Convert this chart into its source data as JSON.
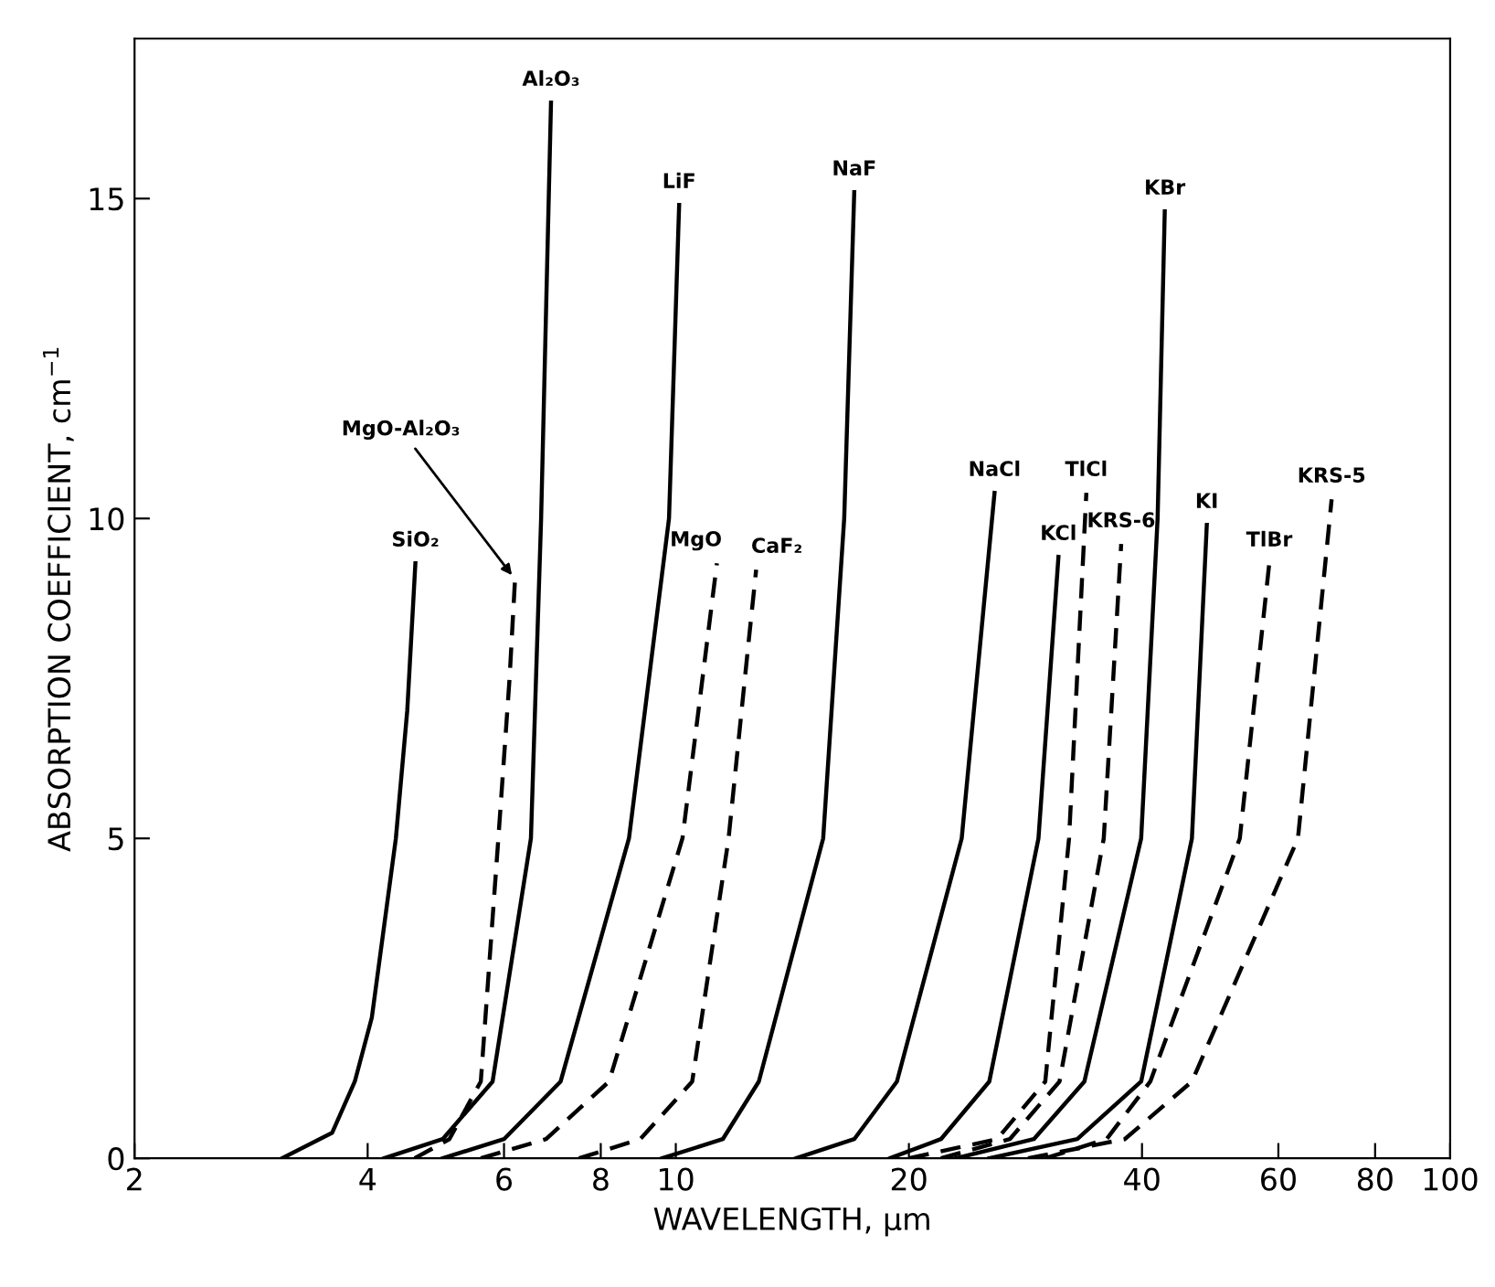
{
  "chart_data": {
    "type": "line",
    "xlabel": "WAVELENGTH, μm",
    "ylabel": "ABSORPTION COEFFICIENT, cm$^{−1}$",
    "log": "x",
    "xlim": [
      2,
      100
    ],
    "ylim": [
      0,
      17.5
    ],
    "xticks": [
      2,
      4,
      6,
      8,
      10,
      20,
      40,
      60,
      80,
      100
    ],
    "yticks": [
      0,
      5,
      10,
      15
    ],
    "grid": false,
    "legend": false,
    "marker": "none",
    "series": [
      {
        "name": "SiO₂",
        "color": "#000000",
        "line_style": "solid",
        "x": [
          3.1,
          3.6,
          3.85,
          4.05,
          4.35,
          4.5,
          4.61
        ],
        "values": [
          0,
          0.4,
          1.2,
          2.2,
          5,
          7,
          9.3
        ]
      },
      {
        "name": "MgO-Al₂O₃",
        "color": "#000000",
        "line_style": "dashed",
        "x": [
          4.6,
          5.1,
          5.6,
          5.9,
          6.1,
          6.2
        ],
        "values": [
          0,
          0.3,
          1.2,
          5,
          7.5,
          9.05
        ]
      },
      {
        "name": "Al₂O₃",
        "color": "#000000",
        "line_style": "solid",
        "x": [
          4.2,
          5.0,
          5.8,
          6.5,
          6.7,
          6.9
        ],
        "values": [
          0,
          0.3,
          1.2,
          5,
          10,
          16.5
        ]
      },
      {
        "name": "LiF",
        "color": "#000000",
        "line_style": "solid",
        "x": [
          5.0,
          6.0,
          7.1,
          8.7,
          9.8,
          10.1
        ],
        "values": [
          0,
          0.3,
          1.2,
          5,
          10,
          14.9
        ]
      },
      {
        "name": "MgO",
        "color": "#000000",
        "line_style": "dashed",
        "x": [
          5.6,
          6.8,
          8.2,
          10.2,
          11.3
        ],
        "values": [
          0,
          0.3,
          1.2,
          5,
          9.3
        ]
      },
      {
        "name": "CaF₂",
        "color": "#000000",
        "line_style": "dashed",
        "x": [
          7.5,
          9.0,
          10.5,
          11.7,
          12.4,
          12.7
        ],
        "values": [
          0,
          0.3,
          1.2,
          5,
          8,
          9.2
        ]
      },
      {
        "name": "NaF",
        "color": "#000000",
        "line_style": "solid",
        "x": [
          9.6,
          11.5,
          12.8,
          15.5,
          16.5,
          17.0
        ],
        "values": [
          0,
          0.3,
          1.2,
          5,
          10,
          15.1
        ]
      },
      {
        "name": "NaCl",
        "color": "#000000",
        "line_style": "solid",
        "x": [
          14.3,
          17,
          19.3,
          23.4,
          25.8
        ],
        "values": [
          0,
          0.3,
          1.2,
          5,
          10.4
        ]
      },
      {
        "name": "KCl",
        "color": "#000000",
        "line_style": "solid",
        "x": [
          18.9,
          22,
          25.4,
          29.4,
          31.2
        ],
        "values": [
          0,
          0.3,
          1.2,
          5,
          9.4
        ]
      },
      {
        "name": "TlCl",
        "color": "#000000",
        "line_style": "dashed",
        "x": [
          20,
          26,
          30,
          32.2,
          33.9
        ],
        "values": [
          0,
          0.3,
          1.2,
          5,
          10.4
        ]
      },
      {
        "name": "KRS-6",
        "color": "#000000",
        "line_style": "dashed",
        "x": [
          22,
          27,
          31.3,
          35.7,
          37.6
        ],
        "values": [
          0,
          0.3,
          1.2,
          5,
          9.6
        ]
      },
      {
        "name": "KBr",
        "color": "#000000",
        "line_style": "solid",
        "x": [
          23,
          29,
          33.7,
          39.9,
          41.9,
          42.8
        ],
        "values": [
          0,
          0.3,
          1.2,
          5,
          10,
          14.8
        ]
      },
      {
        "name": "KI",
        "color": "#000000",
        "line_style": "solid",
        "x": [
          25.4,
          33,
          39.9,
          46.4,
          48.5
        ],
        "values": [
          0,
          0.3,
          1.2,
          5,
          9.9
        ]
      },
      {
        "name": "TlBr",
        "color": "#000000",
        "line_style": "dashed",
        "x": [
          30,
          36,
          41,
          53.5,
          58.4
        ],
        "values": [
          0,
          0.3,
          1.2,
          5,
          9.3
        ]
      },
      {
        "name": "KRS-5",
        "color": "#000000",
        "line_style": "dashed",
        "x": [
          28.5,
          38,
          46.4,
          63.6,
          70.3
        ],
        "values": [
          0,
          0.3,
          1.2,
          5,
          10.3
        ]
      }
    ]
  }
}
